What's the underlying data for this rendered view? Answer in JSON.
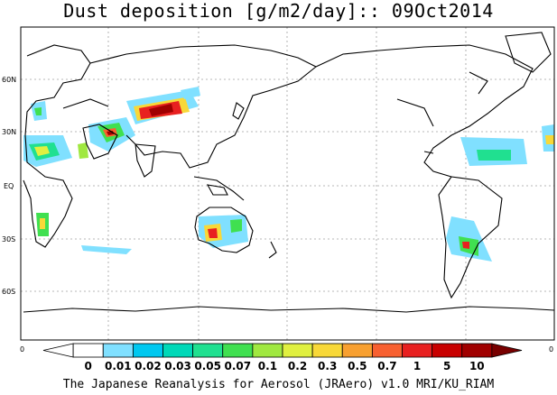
{
  "title": "Dust deposition [g/m2/day]:: 09Oct2014",
  "credit": "The Japanese Reanalysis for Aerosol (JRAero) v1.0 MRI/KU_RIAM",
  "lat_labels": [
    "60N",
    "30N",
    "EQ",
    "30S",
    "60S"
  ],
  "colorbar": {
    "end_left": "0",
    "end_right": "0",
    "levels": [
      "0",
      "0.01",
      "0.02",
      "0.03",
      "0.05",
      "0.07",
      "0.1",
      "0.2",
      "0.3",
      "0.5",
      "0.7",
      "1",
      "5",
      "10"
    ],
    "colors": [
      "#ffffff",
      "#ffffff",
      "#80e0ff",
      "#00c8f0",
      "#00d8b8",
      "#20e090",
      "#40e050",
      "#a0e840",
      "#e0f040",
      "#f8d838",
      "#f8a030",
      "#f86030",
      "#e82020",
      "#c80000",
      "#a00000",
      "#780000"
    ]
  }
}
